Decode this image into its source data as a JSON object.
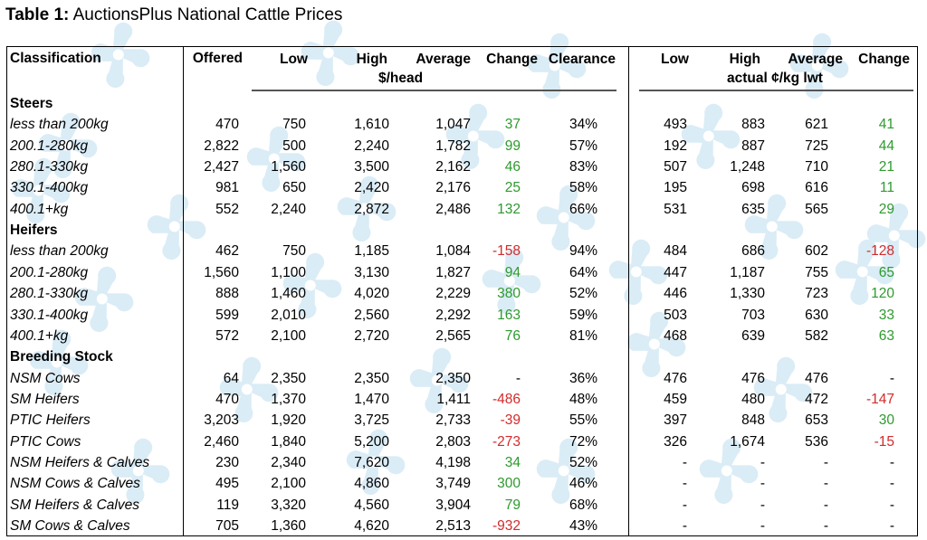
{
  "caption": {
    "label": "Table 1:",
    "title": "AuctionsPlus National Cattle Prices"
  },
  "headers": {
    "classification": "Classification",
    "offered": "Offered",
    "low": "Low",
    "high": "High",
    "average": "Average",
    "change": "Change",
    "clearance": "Clearance",
    "low2": "Low",
    "high2": "High",
    "average2": "Average",
    "change2": "Change",
    "unit_head": "$/head",
    "unit_kg": "actual ¢/kg lwt"
  },
  "sections": [
    {
      "name": "Steers",
      "rows": [
        [
          "less than 200kg",
          "470",
          "750",
          "1,610",
          "1,047",
          "37",
          "34%",
          "493",
          "883",
          "621",
          "41"
        ],
        [
          "200.1-280kg",
          "2,822",
          "500",
          "2,240",
          "1,782",
          "99",
          "57%",
          "192",
          "887",
          "725",
          "44"
        ],
        [
          "280.1-330kg",
          "2,427",
          "1,560",
          "3,500",
          "2,162",
          "46",
          "83%",
          "507",
          "1,248",
          "710",
          "21"
        ],
        [
          "330.1-400kg",
          "981",
          "650",
          "2,420",
          "2,176",
          "25",
          "58%",
          "195",
          "698",
          "616",
          "11"
        ],
        [
          "400.1+kg",
          "552",
          "2,240",
          "2,872",
          "2,486",
          "132",
          "66%",
          "531",
          "635",
          "565",
          "29"
        ]
      ]
    },
    {
      "name": "Heifers",
      "rows": [
        [
          "less than 200kg",
          "462",
          "750",
          "1,185",
          "1,084",
          "-158",
          "94%",
          "484",
          "686",
          "602",
          "-128"
        ],
        [
          "200.1-280kg",
          "1,560",
          "1,100",
          "3,130",
          "1,827",
          "94",
          "64%",
          "447",
          "1,187",
          "755",
          "65"
        ],
        [
          "280.1-330kg",
          "888",
          "1,460",
          "4,020",
          "2,229",
          "380",
          "52%",
          "446",
          "1,330",
          "723",
          "120"
        ],
        [
          "330.1-400kg",
          "599",
          "2,010",
          "2,560",
          "2,292",
          "163",
          "59%",
          "503",
          "703",
          "630",
          "33"
        ],
        [
          "400.1+kg",
          "572",
          "2,100",
          "2,720",
          "2,565",
          "76",
          "81%",
          "468",
          "639",
          "582",
          "63"
        ]
      ]
    },
    {
      "name": "Breeding Stock",
      "rows": [
        [
          "NSM Cows",
          "64",
          "2,350",
          "2,350",
          "2,350",
          "-",
          "36%",
          "476",
          "476",
          "476",
          "-"
        ],
        [
          "SM Heifers",
          "470",
          "1,370",
          "1,470",
          "1,411",
          "-486",
          "48%",
          "459",
          "480",
          "472",
          "-147"
        ],
        [
          "PTIC Heifers",
          "3,203",
          "1,920",
          "3,725",
          "2,733",
          "-39",
          "55%",
          "397",
          "848",
          "653",
          "30"
        ],
        [
          "PTIC Cows",
          "2,460",
          "1,840",
          "5,200",
          "2,803",
          "-273",
          "72%",
          "326",
          "1,674",
          "536",
          "-15"
        ],
        [
          "NSM Heifers & Calves",
          "230",
          "2,340",
          "7,620",
          "4,198",
          "34",
          "52%",
          "-",
          "-",
          "-",
          "-"
        ],
        [
          "NSM Cows & Calves",
          "495",
          "2,100",
          "4,860",
          "3,749",
          "300",
          "46%",
          "-",
          "-",
          "-",
          "-"
        ],
        [
          "SM Heifers & Calves",
          "119",
          "3,320",
          "4,560",
          "3,904",
          "79",
          "68%",
          "-",
          "-",
          "-",
          "-"
        ],
        [
          "SM Cows & Calves",
          "705",
          "1,360",
          "4,620",
          "2,513",
          "-932",
          "43%",
          "-",
          "-",
          "-",
          "-"
        ]
      ]
    }
  ],
  "colors": {
    "positive": "#2e9a2e",
    "negative": "#d22b2b",
    "watermark": "#cfe6f3"
  }
}
